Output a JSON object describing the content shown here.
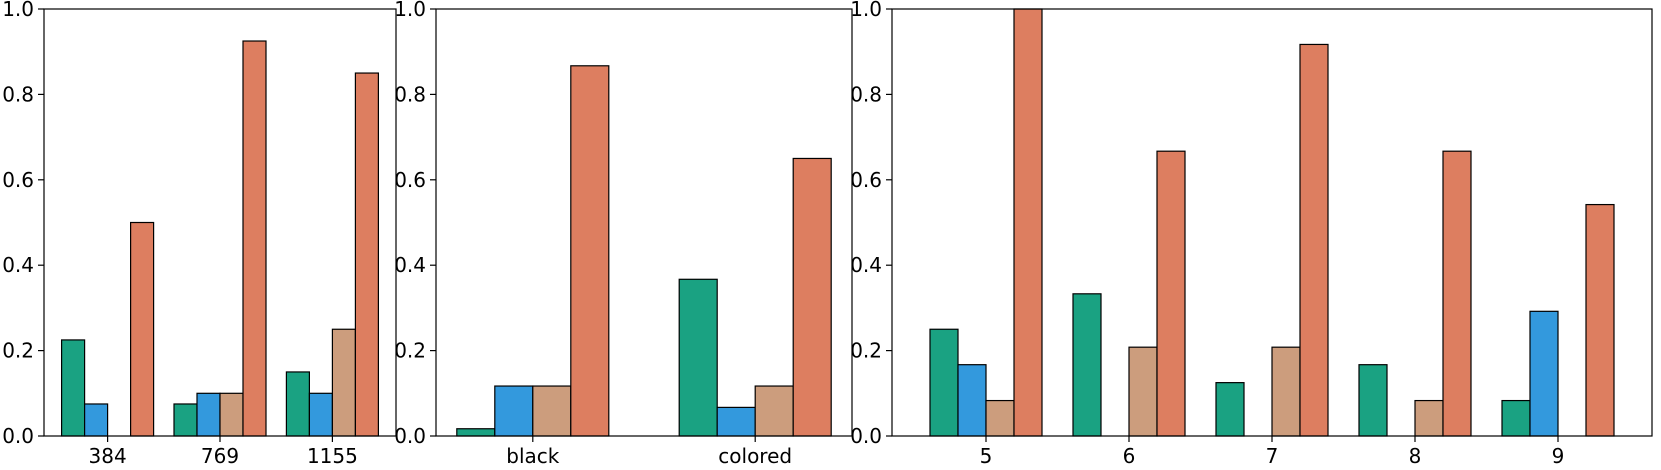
{
  "colors": {
    "series": [
      "#1aa282",
      "#3399dd",
      "#cc9d7d",
      "#dd7e60"
    ],
    "edge": "#000000",
    "background": "#ffffff"
  },
  "chart_data": [
    {
      "type": "bar",
      "categories": [
        "384",
        "769",
        "1155"
      ],
      "series": [
        {
          "values": [
            0.225,
            0.075,
            0.15
          ]
        },
        {
          "values": [
            0.075,
            0.1,
            0.1
          ]
        },
        {
          "values": [
            0.0,
            0.1,
            0.25
          ]
        },
        {
          "values": [
            0.5,
            0.925,
            0.85
          ]
        }
      ],
      "ylim": [
        0,
        1.0
      ],
      "yticks": [
        "0.0",
        "0.2",
        "0.4",
        "0.6",
        "0.8",
        "1.0"
      ],
      "grid": false
    },
    {
      "type": "bar",
      "categories": [
        "black",
        "colored"
      ],
      "series": [
        {
          "values": [
            0.017,
            0.367
          ]
        },
        {
          "values": [
            0.117,
            0.067
          ]
        },
        {
          "values": [
            0.117,
            0.117
          ]
        },
        {
          "values": [
            0.867,
            0.65
          ]
        }
      ],
      "ylim": [
        0,
        1.0
      ],
      "yticks": [
        "0.0",
        "0.2",
        "0.4",
        "0.6",
        "0.8",
        "1.0"
      ],
      "grid": false
    },
    {
      "type": "bar",
      "categories": [
        "5",
        "6",
        "7",
        "8",
        "9"
      ],
      "series": [
        {
          "values": [
            0.25,
            0.333,
            0.125,
            0.167,
            0.083
          ]
        },
        {
          "values": [
            0.167,
            0.0,
            0.0,
            0.0,
            0.292
          ]
        },
        {
          "values": [
            0.083,
            0.208,
            0.208,
            0.083,
            0.0
          ]
        },
        {
          "values": [
            1.0,
            0.667,
            0.917,
            0.667,
            0.542
          ]
        }
      ],
      "ylim": [
        0,
        1.0
      ],
      "yticks": [
        "0.0",
        "0.2",
        "0.4",
        "0.6",
        "0.8",
        "1.0"
      ],
      "grid": false
    }
  ]
}
